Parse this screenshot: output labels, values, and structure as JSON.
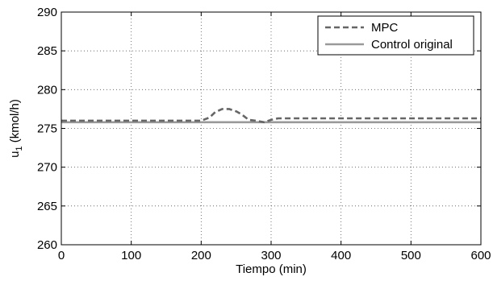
{
  "chart_data": {
    "type": "line",
    "xlabel": "Tiempo (min)",
    "ylabel_main": "u",
    "ylabel_sub": "1",
    "ylabel_rest": " (kmol/h)",
    "xlim": [
      0,
      600
    ],
    "ylim": [
      260,
      290
    ],
    "xticks": [
      0,
      100,
      200,
      300,
      400,
      500,
      600
    ],
    "yticks": [
      260,
      265,
      270,
      275,
      280,
      285,
      290
    ],
    "grid": true,
    "legend_position": "top-right",
    "series": [
      {
        "name": "MPC",
        "color": "#666666",
        "style": "dashed",
        "x": [
          0,
          100,
          200,
          212,
          220,
          230,
          240,
          250,
          258,
          268,
          278,
          290,
          300,
          310,
          400,
          500,
          600
        ],
        "y": [
          276.0,
          276.0,
          276.0,
          276.4,
          277.1,
          277.5,
          277.5,
          277.2,
          276.8,
          276.1,
          276.0,
          275.8,
          276.1,
          276.3,
          276.3,
          276.3,
          276.3
        ]
      },
      {
        "name": "Control original",
        "color": "#999999",
        "style": "solid",
        "x": [
          0,
          600
        ],
        "y": [
          275.8,
          275.8
        ]
      }
    ]
  }
}
